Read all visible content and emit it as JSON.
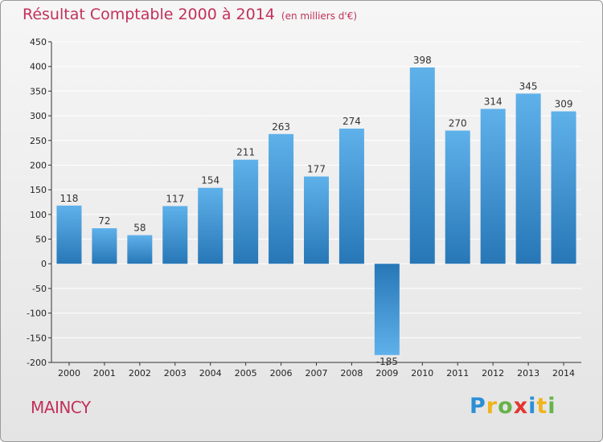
{
  "header": {
    "title": "Résultat Comptable 2000 à 2014",
    "unit": "(en milliers d'€)"
  },
  "footer": {
    "commune": "MAINCY",
    "logo_text": "Proxiti",
    "logo_colors": [
      "#2b8fd6",
      "#f0b41c",
      "#66b34a",
      "#e3352f",
      "#2b8fd6",
      "#f0b41c",
      "#66b34a"
    ]
  },
  "colors": {
    "title": "#c2315a",
    "bar_light": "#5fb1ea",
    "bar_dark": "#2777b7",
    "grid": "#ffffff",
    "axis": "#333333"
  },
  "chart_data": {
    "type": "bar",
    "title": "Résultat Comptable 2000 à 2014",
    "xlabel": "",
    "ylabel": "(en milliers d'€)",
    "ylim": [
      -200,
      450
    ],
    "yticks": [
      -200,
      -150,
      -100,
      -50,
      0,
      50,
      100,
      150,
      200,
      250,
      300,
      350,
      400,
      450
    ],
    "categories": [
      "2000",
      "2001",
      "2002",
      "2003",
      "2004",
      "2005",
      "2006",
      "2007",
      "2008",
      "2009",
      "2010",
      "2011",
      "2012",
      "2013",
      "2014"
    ],
    "values": [
      118,
      72,
      58,
      117,
      154,
      211,
      263,
      177,
      274,
      -185,
      398,
      270,
      314,
      345,
      309
    ],
    "grid": true,
    "legend": "none"
  }
}
